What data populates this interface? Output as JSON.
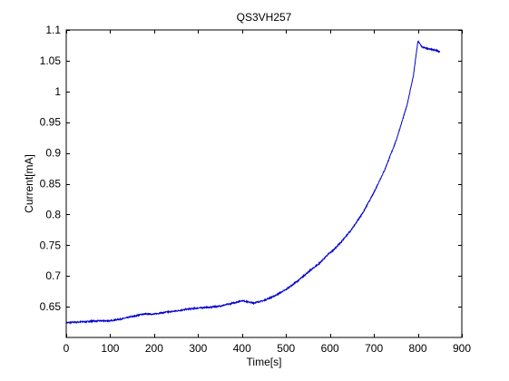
{
  "chart_data": {
    "type": "line",
    "title": "QS3VH257",
    "xlabel": "Time[s]",
    "ylabel": "Current[mA]",
    "xlim": [
      0,
      900
    ],
    "ylim": [
      0.6,
      1.1
    ],
    "xticks": [
      0,
      100,
      200,
      300,
      400,
      500,
      600,
      700,
      800,
      900
    ],
    "yticks": [
      0.65,
      0.7,
      0.75,
      0.8,
      0.85,
      0.9,
      0.95,
      1,
      1.05,
      1.1
    ],
    "xtick_labels": [
      "0",
      "100",
      "200",
      "300",
      "400",
      "500",
      "600",
      "700",
      "800",
      "900"
    ],
    "ytick_labels": [
      "0.65",
      "0.7",
      "0.75",
      "0.8",
      "0.85",
      "0.9",
      "0.95",
      "1",
      "1.05",
      "1.1"
    ],
    "grid": false,
    "line_color": "#0000cc",
    "series": [
      {
        "x": [
          0,
          25,
          50,
          75,
          100,
          125,
          150,
          175,
          200,
          225,
          250,
          275,
          300,
          325,
          350,
          375,
          400,
          425,
          450,
          475,
          500,
          525,
          550,
          575,
          600,
          625,
          650,
          675,
          700,
          725,
          750,
          775,
          790,
          800,
          810,
          825,
          840,
          850
        ],
        "y": [
          0.624,
          0.625,
          0.626,
          0.627,
          0.627,
          0.63,
          0.634,
          0.638,
          0.638,
          0.641,
          0.643,
          0.646,
          0.648,
          0.649,
          0.651,
          0.655,
          0.66,
          0.656,
          0.66,
          0.668,
          0.678,
          0.691,
          0.706,
          0.72,
          0.738,
          0.756,
          0.778,
          0.805,
          0.838,
          0.876,
          0.922,
          0.98,
          1.03,
          1.085,
          1.075,
          1.072,
          1.07,
          1.068
        ],
        "oscillation": [
          {
            "from": 600,
            "to": 800,
            "amplitude_start": 0.004,
            "amplitude_end": 0.015
          },
          {
            "from": 800,
            "to": 850,
            "amplitude_start": 0.012,
            "amplitude_end": 0.012
          }
        ]
      }
    ]
  }
}
